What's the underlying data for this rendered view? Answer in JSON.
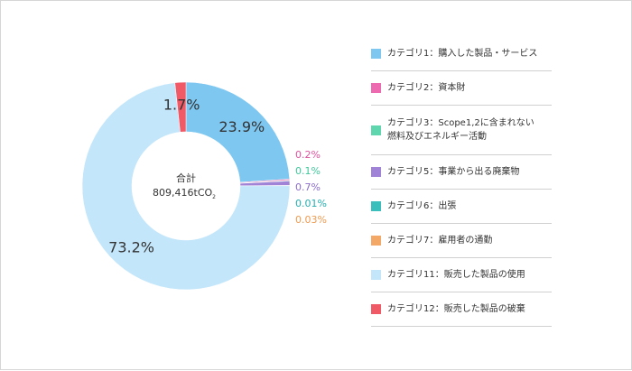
{
  "chart_data": {
    "type": "pie",
    "variant": "donut",
    "total_label": "合計",
    "total_value": "809,416tCO",
    "total_unit_subscript": "2",
    "series": [
      {
        "name": "カテゴリ1：購入した製品・サービス",
        "value": 23.9,
        "label": "23.9%",
        "color": "#7ec7f1",
        "label_color": "#333333"
      },
      {
        "name": "カテゴリ2：資本財",
        "value": 0.2,
        "label": "0.2%",
        "color": "#ee6ab0",
        "label_color": "#e0529d"
      },
      {
        "name": "カテゴリ3：Scope1,2に含まれない\n燃料及びエネルギー活動",
        "value": 0.1,
        "label": "0.1%",
        "color": "#5fd6ad",
        "label_color": "#3fc79b"
      },
      {
        "name": "カテゴリ5：事業から出る廃棄物",
        "value": 0.7,
        "label": "0.7%",
        "color": "#a083d6",
        "label_color": "#8a6ccb"
      },
      {
        "name": "カテゴリ6：出張",
        "value": 0.01,
        "label": "0.01%",
        "color": "#3bbfbc",
        "label_color": "#23aeb0"
      },
      {
        "name": "カテゴリ7：雇用者の通勤",
        "value": 0.03,
        "label": "0.03%",
        "color": "#f3a868",
        "label_color": "#ef9a4f"
      },
      {
        "name": "カテゴリ11：販売した製品の使用",
        "value": 73.2,
        "label": "73.2%",
        "color": "#c3e6fb",
        "label_color": "#333333"
      },
      {
        "name": "カテゴリ12：販売した製品の破棄",
        "value": 1.7,
        "label": "1.7%",
        "color": "#ef5a66",
        "label_color": "#333333"
      }
    ]
  }
}
